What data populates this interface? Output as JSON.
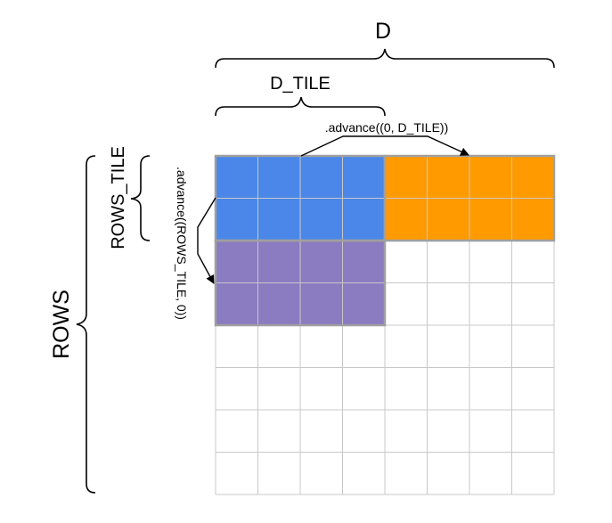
{
  "labels": {
    "d": "D",
    "d_tile": "D_TILE",
    "rows": "ROWS",
    "rows_tile": "ROWS_TILE",
    "advance_col": ".advance((0, D_TILE))",
    "advance_row": ".advance((ROWS_TILE, 0))"
  },
  "grid": {
    "cols": 8,
    "rows": 8,
    "tiles": [
      {
        "name": "tile-blue",
        "color": "#4a87e8",
        "row_start": 0,
        "row_span": 2,
        "col_start": 0,
        "col_span": 4
      },
      {
        "name": "tile-orange",
        "color": "#ff9a00",
        "row_start": 0,
        "row_span": 2,
        "col_start": 4,
        "col_span": 4
      },
      {
        "name": "tile-purple",
        "color": "#8b7bc1",
        "row_start": 2,
        "row_span": 2,
        "col_start": 0,
        "col_span": 4
      }
    ],
    "line_color": "#c8c8c8",
    "tile_border_color": "#a0a0a0"
  }
}
